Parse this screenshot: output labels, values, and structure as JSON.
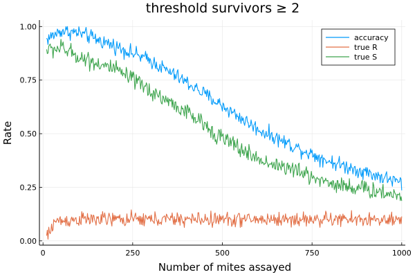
{
  "chart_data": {
    "type": "line",
    "title": "threshold survivors ≥ 2",
    "xlabel": "Number of mites assayed",
    "ylabel": "Rate",
    "xlim": [
      -10,
      1010
    ],
    "ylim": [
      -0.02,
      1.03
    ],
    "x_ticks": [
      0,
      250,
      500,
      750,
      1000
    ],
    "x_tick_labels": [
      "0",
      "250",
      "500",
      "750",
      "1000"
    ],
    "y_ticks": [
      0,
      0.25,
      0.5,
      0.75,
      1.0
    ],
    "y_tick_labels": [
      "0.00",
      "0.25",
      "0.50",
      "0.75",
      "1.00"
    ],
    "grid": true,
    "legend_position": "top-right",
    "x": {
      "start": 10,
      "end": 1000,
      "step": 2
    },
    "series": [
      {
        "name": "accuracy",
        "color": "#009AFA",
        "trend_x": [
          10,
          50,
          100,
          200,
          300,
          400,
          500,
          600,
          700,
          800,
          900,
          1000
        ],
        "trend_y": [
          0.94,
          0.98,
          0.97,
          0.91,
          0.84,
          0.74,
          0.63,
          0.52,
          0.44,
          0.37,
          0.32,
          0.27
        ],
        "noise": 0.03
      },
      {
        "name": "true R",
        "color": "#E26F46",
        "trend_x": [
          10,
          20,
          30,
          100,
          300,
          500,
          700,
          900,
          1000
        ],
        "trend_y": [
          0.02,
          0.04,
          0.09,
          0.1,
          0.1,
          0.1,
          0.1,
          0.1,
          0.09
        ],
        "noise": 0.03
      },
      {
        "name": "true S",
        "color": "#3DA44D",
        "trend_x": [
          10,
          50,
          100,
          200,
          300,
          400,
          500,
          600,
          700,
          800,
          900,
          1000
        ],
        "trend_y": [
          0.89,
          0.9,
          0.86,
          0.8,
          0.7,
          0.6,
          0.48,
          0.38,
          0.33,
          0.27,
          0.24,
          0.21
        ],
        "noise": 0.035
      }
    ]
  }
}
